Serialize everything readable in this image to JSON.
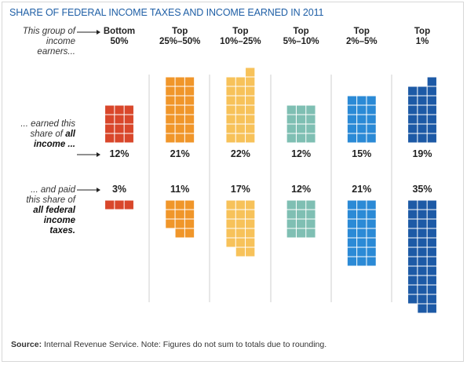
{
  "chart_data": {
    "type": "waffle",
    "title": "SHARE OF FEDERAL INCOME TAXES AND INCOME EARNED IN 2011",
    "group_label": "This group of income earners...",
    "categories": [
      "Bottom 50%",
      "Top 25%–50%",
      "Top 10%–25%",
      "Top 5%–10%",
      "Top 2%–5%",
      "Top 1%"
    ],
    "colors": [
      "#d9472b",
      "#f0962a",
      "#f7c25a",
      "#7fbfb3",
      "#2b8ad6",
      "#1d5aa6"
    ],
    "series": [
      {
        "label_regular": "... earned this share of",
        "label_bold": "all income ...",
        "values": [
          12,
          21,
          22,
          12,
          15,
          19
        ],
        "value_labels": [
          "12%",
          "21%",
          "22%",
          "12%",
          "15%",
          "19%"
        ]
      },
      {
        "label_regular": "... and paid this share of",
        "label_bold": "all federal income taxes.",
        "values": [
          3,
          11,
          17,
          12,
          21,
          35
        ],
        "value_labels": [
          "3%",
          "11%",
          "17%",
          "12%",
          "21%",
          "35%"
        ]
      }
    ],
    "source_label": "Source:",
    "source": "Internal Revenue Service. Note: Figures do not sum to totals due to rounding."
  }
}
